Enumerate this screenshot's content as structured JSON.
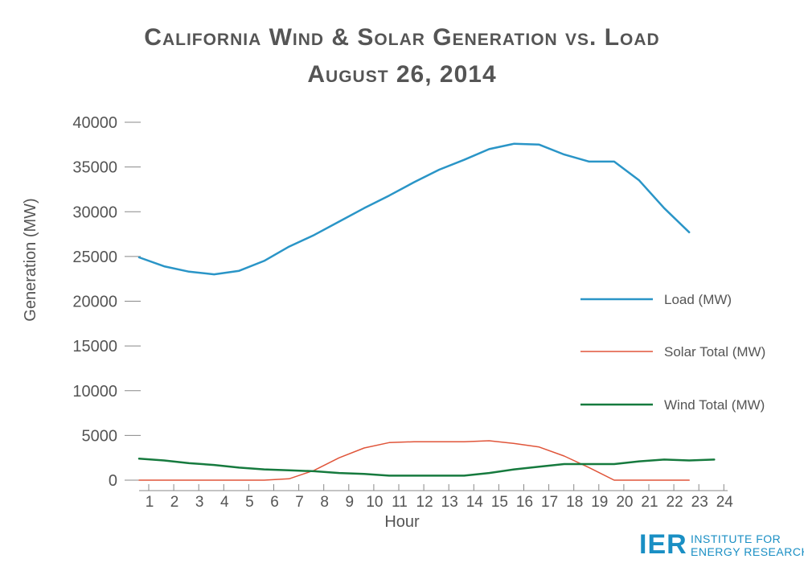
{
  "title_line1": "California Wind & Solar Generation vs. Load",
  "title_line2": "August 26, 2014",
  "logo": {
    "mark": "IER",
    "line1": "INSTITUTE FOR",
    "line2": "ENERGY RESEARCH"
  },
  "colors": {
    "load": "#2a95c7",
    "solar": "#e0553a",
    "wind": "#167a3e",
    "text": "#555555",
    "axis": "#888888"
  },
  "chart_data": {
    "type": "line",
    "title": "California Wind & Solar Generation vs. Load August 26, 2014",
    "xlabel": "Hour",
    "ylabel": "Generation (MW)",
    "x": [
      1,
      2,
      3,
      4,
      5,
      6,
      7,
      8,
      9,
      10,
      11,
      12,
      13,
      14,
      15,
      16,
      17,
      18,
      19,
      20,
      21,
      22,
      23,
      24
    ],
    "x_ticks": [
      "1",
      "2",
      "3",
      "4",
      "5",
      "6",
      "7",
      "8",
      "9",
      "10",
      "11",
      "12",
      "13",
      "14",
      "15",
      "16",
      "17",
      "18",
      "19",
      "20",
      "21",
      "22",
      "23",
      "24"
    ],
    "ylim": [
      0,
      40000
    ],
    "y_ticks": [
      "0",
      "5000",
      "10000",
      "15000",
      "20000",
      "25000",
      "30000",
      "35000",
      "40000"
    ],
    "legend_position": "right",
    "series": [
      {
        "name": "Load (MW)",
        "color": "#2a95c7",
        "width": 2.5,
        "values": [
          24900,
          23900,
          23300,
          23000,
          23400,
          24500,
          26100,
          27400,
          28900,
          30400,
          31800,
          33300,
          34700,
          35800,
          37000,
          37600,
          37500,
          36400,
          35600,
          35600,
          33500,
          30400,
          27700,
          null
        ]
      },
      {
        "name": "Solar Total (MW)",
        "color": "#e0553a",
        "width": 1.5,
        "values": [
          0,
          0,
          0,
          0,
          0,
          0,
          150,
          1100,
          2500,
          3600,
          4200,
          4300,
          4300,
          4300,
          4400,
          4100,
          3700,
          2700,
          1400,
          0,
          0,
          0,
          0,
          null
        ]
      },
      {
        "name": "Wind Total (MW)",
        "color": "#167a3e",
        "width": 2.5,
        "values": [
          2400,
          2200,
          1900,
          1700,
          1400,
          1200,
          1100,
          1000,
          800,
          700,
          500,
          500,
          500,
          500,
          800,
          1200,
          1500,
          1800,
          1800,
          1800,
          2100,
          2300,
          2200,
          2300
        ]
      }
    ]
  }
}
